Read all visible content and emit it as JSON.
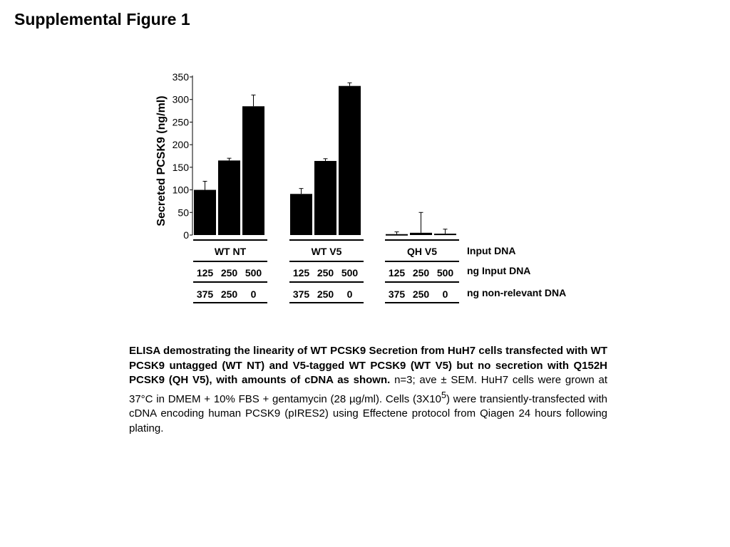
{
  "title": "Supplemental Figure 1",
  "chart_data": {
    "type": "bar",
    "ylabel": "Secreted PCSK9 (ng/ml)",
    "ylim": [
      0,
      350
    ],
    "yticks": [
      "0",
      "50",
      "100",
      "150",
      "200",
      "250",
      "300",
      "350"
    ],
    "groups": [
      {
        "name": "WT NT",
        "input_ng": [
          "125",
          "250",
          "500"
        ],
        "nonrelevant_ng": [
          "375",
          "250",
          "0"
        ],
        "values": [
          100,
          165,
          285
        ],
        "errors": [
          19,
          5,
          25
        ]
      },
      {
        "name": "WT V5",
        "input_ng": [
          "125",
          "250",
          "500"
        ],
        "nonrelevant_ng": [
          "375",
          "250",
          "0"
        ],
        "values": [
          91,
          164,
          330
        ],
        "errors": [
          12,
          5,
          7
        ]
      },
      {
        "name": "QH V5",
        "input_ng": [
          "125",
          "250",
          "500"
        ],
        "nonrelevant_ng": [
          "375",
          "250",
          "0"
        ],
        "values": [
          2,
          5,
          3
        ],
        "errors": [
          5,
          45,
          10
        ]
      }
    ],
    "row_labels": {
      "group": "Input DNA",
      "input": "ng Input DNA",
      "nonrelevant": "ng non-relevant DNA"
    }
  },
  "caption": {
    "bold": "ELISA demostrating the linearity of WT PCSK9 Secretion from HuH7 cells transfected with WT PCSK9 untagged (WT NT) and V5-tagged WT PCSK9 (WT V5) but no secretion with Q152H PCSK9 (QH V5), with amounts of cDNA as shown.",
    "part1": "n=3; ave ± SEM. HuH7 cells were grown at 37°C in DMEM + 10% FBS + gentamycin (28 µg/ml). Cells (3X10",
    "sup": "5",
    "part2": ") were transiently-transfected with cDNA encoding human PCSK9 (pIRES2) using Effectene protocol from Qiagen 24 hours following plating."
  }
}
